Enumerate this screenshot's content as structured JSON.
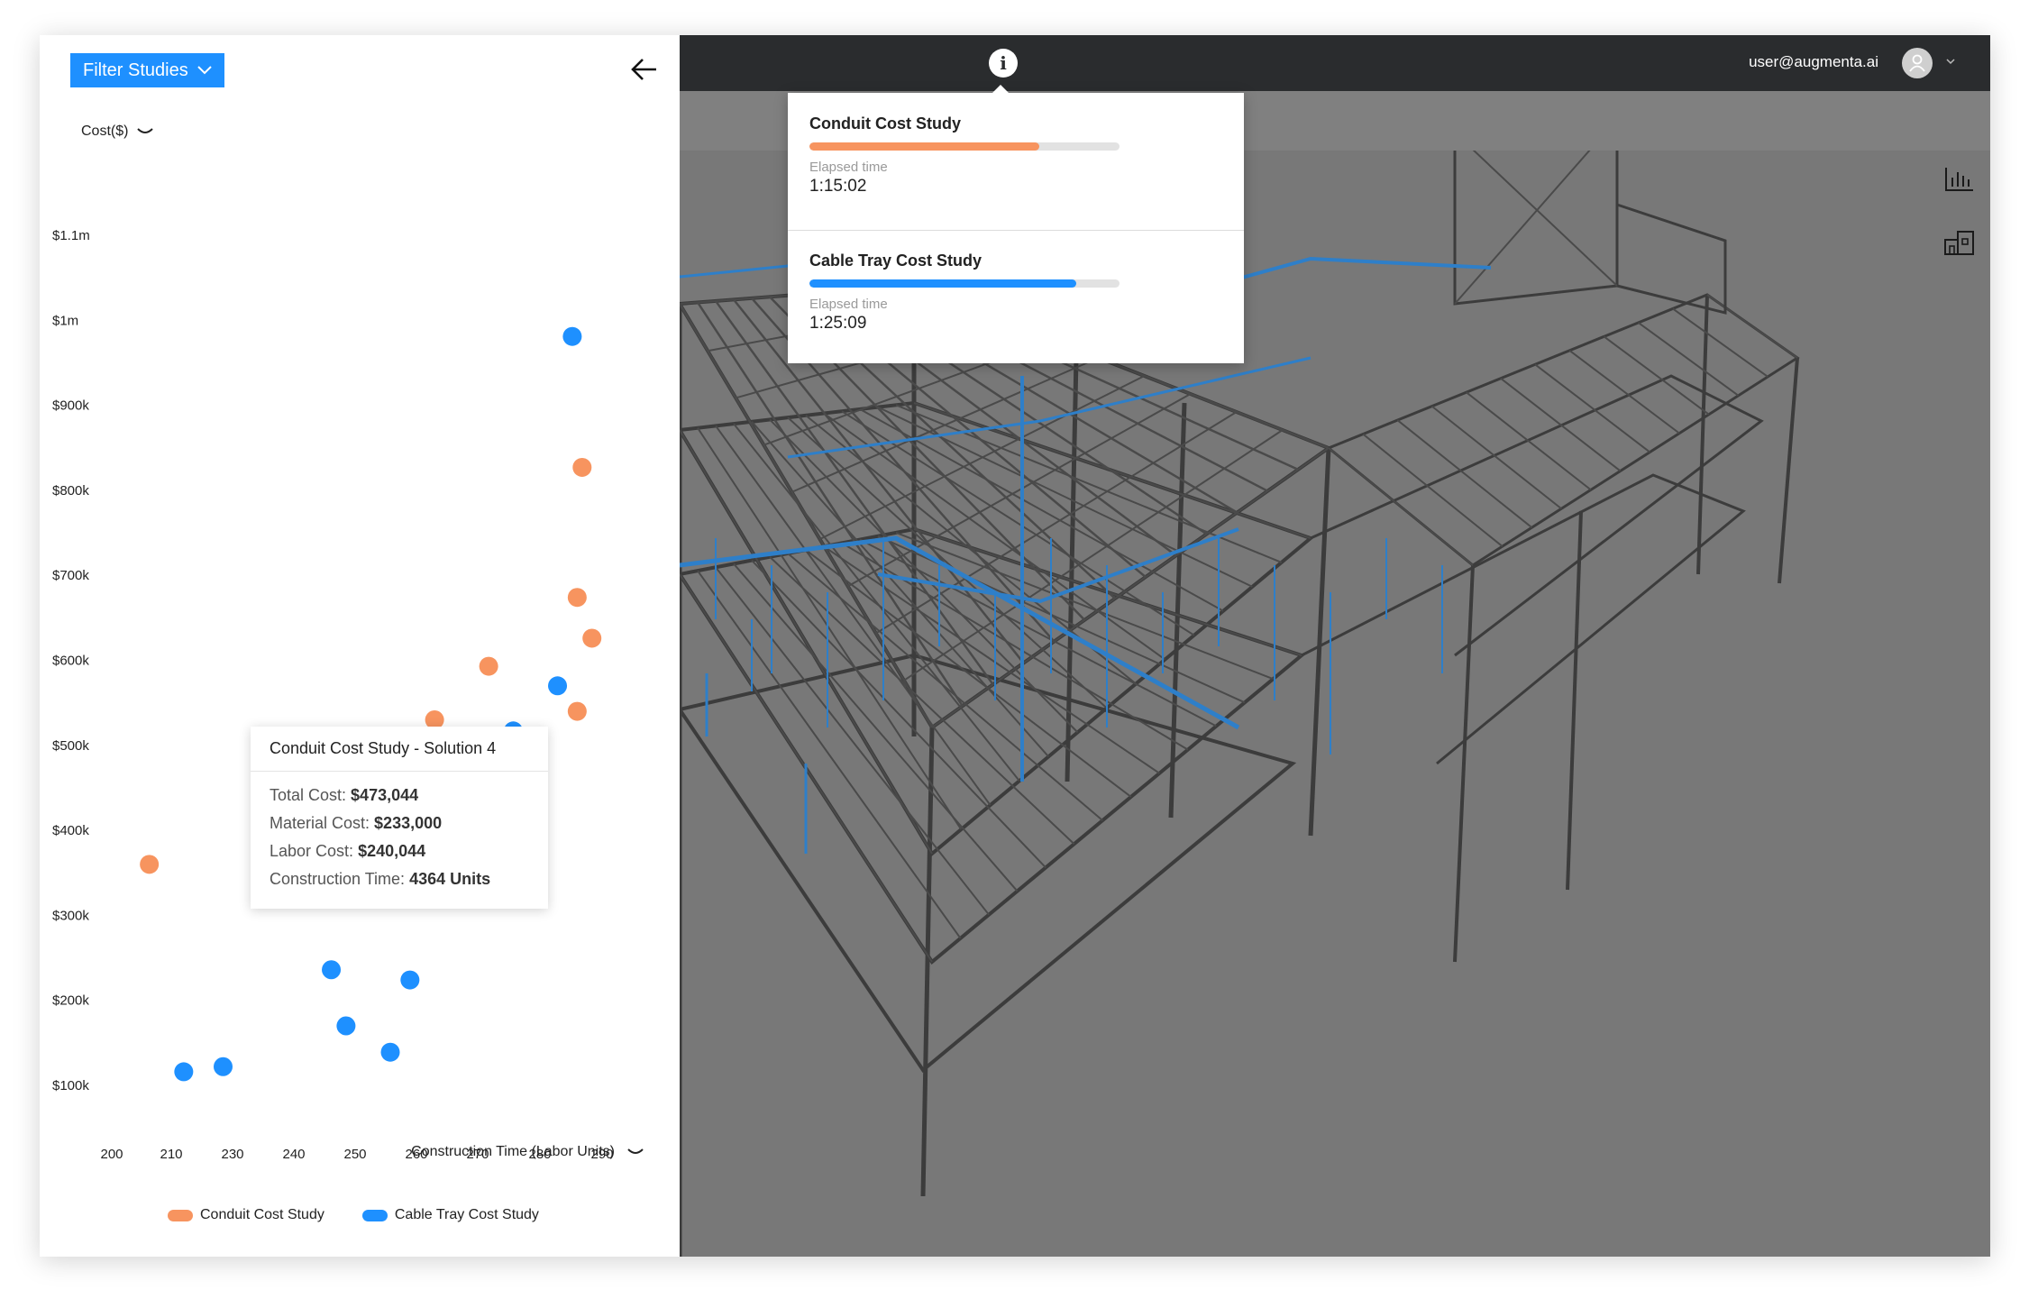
{
  "left_panel": {
    "filter_label": "Filter Studies",
    "y_selector": "Cost($)",
    "x_selector": "Construction Time (Labor Units)",
    "legend": [
      {
        "label": "Conduit Cost Study",
        "color": "#f7945f"
      },
      {
        "label": "Cable Tray Cost Study",
        "color": "#1e90ff"
      }
    ],
    "tooltip": {
      "title": "Conduit Cost Study - Solution 4",
      "rows": [
        {
          "label": "Total Cost: ",
          "value": "$473,044"
        },
        {
          "label": "Material Cost: ",
          "value": "$233,000"
        },
        {
          "label": "Labor Cost: ",
          "value": "$240,044"
        },
        {
          "label": "Construction Time: ",
          "value": "4364 Units"
        }
      ]
    }
  },
  "chart_data": {
    "type": "scatter",
    "x_ticks": [
      "200",
      "210",
      "230",
      "240",
      "250",
      "260",
      "270",
      "280",
      "290"
    ],
    "y_ticks": [
      "$1.1m",
      "$1m",
      "$900k",
      "$800k",
      "$700k",
      "$600k",
      "$500k",
      "$400k",
      "$300k",
      "$200k",
      "$100k"
    ],
    "xlim": [
      195,
      298
    ],
    "ylim": [
      100000,
      1100000
    ],
    "grid": false,
    "legend_position": "bottom",
    "series": [
      {
        "name": "Conduit Cost Study",
        "color": "#f7945f",
        "points": [
          {
            "x": 203,
            "y": 360000
          },
          {
            "x": 229,
            "y": 455000
          },
          {
            "x": 261,
            "y": 530000
          },
          {
            "x": 272,
            "y": 593000
          },
          {
            "x": 290,
            "y": 540000
          },
          {
            "x": 293,
            "y": 626000
          },
          {
            "x": 290,
            "y": 674000
          },
          {
            "x": 291,
            "y": 827000
          }
        ]
      },
      {
        "name": "Cable Tray Cost Study",
        "color": "#1e90ff",
        "points": [
          {
            "x": 210,
            "y": 116000
          },
          {
            "x": 218,
            "y": 122000
          },
          {
            "x": 240,
            "y": 236000
          },
          {
            "x": 243,
            "y": 170000
          },
          {
            "x": 252,
            "y": 139000
          },
          {
            "x": 256,
            "y": 224000
          },
          {
            "x": 277,
            "y": 517000
          },
          {
            "x": 286,
            "y": 570000
          },
          {
            "x": 289,
            "y": 981000
          }
        ]
      }
    ]
  },
  "topbar": {
    "info_glyph": "i",
    "user_email": "user@augmenta.ai"
  },
  "status_popup": {
    "studies": [
      {
        "name": "Conduit Cost Study",
        "progress": 0.74,
        "color": "#f7945f",
        "elapsed_label": "Elapsed time",
        "elapsed": "1:15:02"
      },
      {
        "name": "Cable Tray Cost Study",
        "progress": 0.86,
        "color": "#1e90ff",
        "elapsed_label": "Elapsed time",
        "elapsed": "1:25:09"
      }
    ]
  },
  "side_tools": [
    {
      "icon": "bar-chart-icon"
    },
    {
      "icon": "building-icon"
    }
  ]
}
